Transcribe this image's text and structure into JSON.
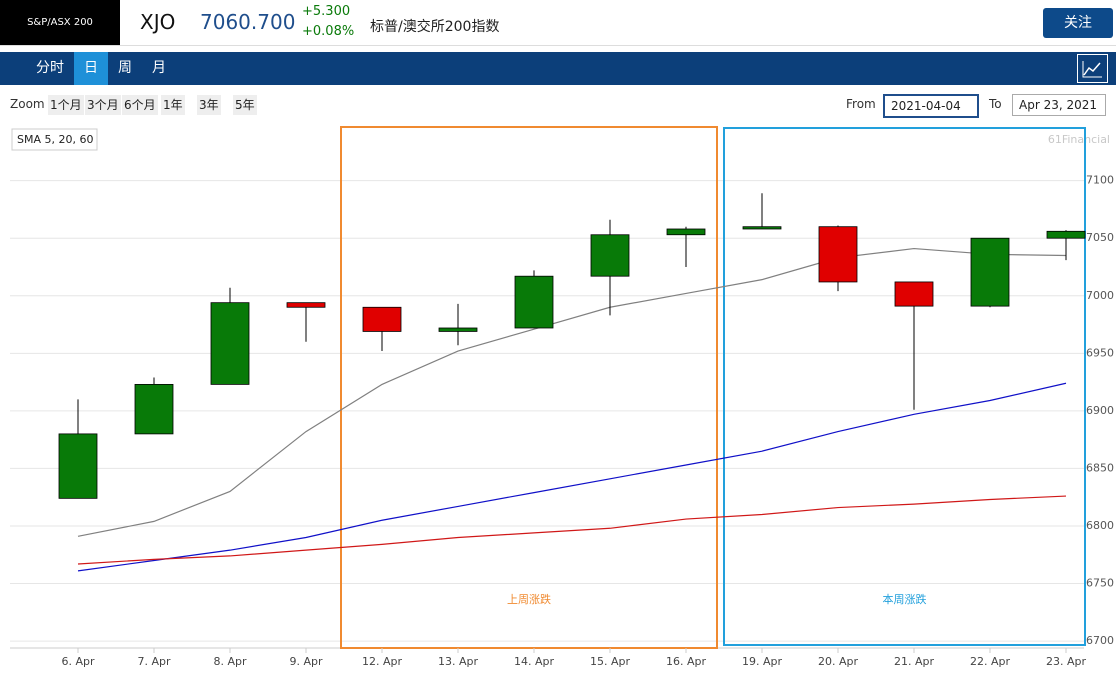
{
  "header": {
    "index_badge": "S&P/ASX 200",
    "symbol": "XJO",
    "price": "7060.700",
    "change": "+5.300",
    "change_pct": "+0.08%",
    "name": "标普/澳交所200指数",
    "follow_button": "关注"
  },
  "nav": {
    "tabs": [
      "分时",
      "日",
      "周",
      "月"
    ],
    "active": 1
  },
  "toolbar": {
    "zoom_label": "Zoom",
    "zoom_buttons": [
      "1个月",
      "3个月",
      "6个月",
      "1年",
      "3年",
      "5年"
    ],
    "from_label": "From",
    "from_value": "2021-04-04",
    "to_label": "To",
    "to_value": "Apr 23, 2021"
  },
  "chart_data": {
    "type": "candlestick",
    "indicator_label": "SMA 5, 20, 60",
    "credit": "61Financial",
    "categories": [
      "6. Apr",
      "7. Apr",
      "8. Apr",
      "9. Apr",
      "12. Apr",
      "13. Apr",
      "14. Apr",
      "15. Apr",
      "16. Apr",
      "19. Apr",
      "20. Apr",
      "21. Apr",
      "22. Apr",
      "23. Apr"
    ],
    "open": [
      6824,
      6880,
      6923,
      6994,
      6990,
      6969,
      6972,
      7017,
      7053,
      7058,
      7060,
      7012,
      6991,
      7050
    ],
    "high": [
      6910,
      6929,
      7007,
      6994,
      6990,
      6993,
      7022,
      7066,
      7060,
      7089,
      7061,
      7012,
      7050,
      7057
    ],
    "low": [
      6824,
      6880,
      6923,
      6960,
      6952,
      6957,
      6972,
      6983,
      7025,
      7058,
      7004,
      6901,
      6990,
      7031
    ],
    "close": [
      6880,
      6923,
      6994,
      6990,
      6969,
      6972,
      7017,
      7053,
      7058,
      7060,
      7012,
      6991,
      7050,
      7056
    ],
    "up_color": "#087a08",
    "down_color": "#e00000",
    "series": [
      {
        "color": "#808080",
        "values": [
          6791,
          6804,
          6830,
          6882,
          6923,
          6952,
          6971,
          6990,
          7002,
          7014,
          7033,
          7041,
          7036,
          7035
        ]
      },
      {
        "color": "#1010c8",
        "values": [
          6761,
          6770,
          6779,
          6790,
          6805,
          6817,
          6829,
          6841,
          6853,
          6865,
          6882,
          6897,
          6909,
          6924
        ]
      },
      {
        "color": "#d01818",
        "values": [
          6767,
          6771,
          6774,
          6779,
          6784,
          6790,
          6794,
          6798,
          6806,
          6810,
          6816,
          6819,
          6823,
          6826
        ]
      }
    ],
    "annotations": [
      {
        "text": "上周涨跌",
        "color": "#f08a30"
      },
      {
        "text": "本周涨跌",
        "color": "#22a0dc"
      }
    ],
    "ylim": [
      6694,
      7144
    ],
    "yticks": [
      6700,
      6750,
      6800,
      6850,
      6900,
      6950,
      7000,
      7050,
      7100
    ],
    "grid": true
  }
}
